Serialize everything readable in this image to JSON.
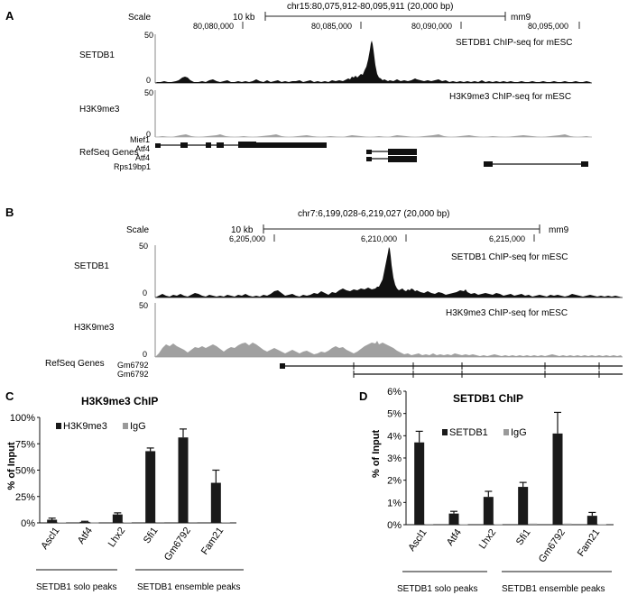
{
  "panels": {
    "A": {
      "label": "A",
      "scale_label": "Scale",
      "scale_bar": "10 kb",
      "coords": "chr15:80,075,912-80,095,911 (20,000 bp)",
      "assembly": "mm9",
      "ticks": [
        "80,080,000",
        "80,085,000",
        "80,090,000",
        "80,095,000"
      ],
      "setdb1": {
        "label": "SETDB1",
        "max": "50",
        "min": "0",
        "title": "SETDB1 ChIP-seq for mESC"
      },
      "h3k9": {
        "label": "H3K9me3",
        "max": "50",
        "min": "0",
        "title": "H3K9me3 ChIP-seq for mESC"
      },
      "refseq_label": "RefSeq Genes",
      "genes": [
        "Mief1",
        "Atf4",
        "Atf4",
        "Rps19bp1"
      ]
    },
    "B": {
      "label": "B",
      "scale_label": "Scale",
      "scale_bar": "10 kb",
      "coords": "chr7:6,199,028-6,219,027 (20,000 bp)",
      "assembly": "mm9",
      "ticks": [
        "6,205,000",
        "6,210,000",
        "6,215,000"
      ],
      "setdb1": {
        "label": "SETDB1",
        "max": "50",
        "min": "0",
        "title": "SETDB1 ChIP-seq for mESC"
      },
      "h3k9": {
        "label": "H3K9me3",
        "max": "50",
        "min": "0",
        "title": "H3K9me3 ChIP-seq for mESC"
      },
      "refseq_label": "RefSeq Genes",
      "genes": [
        "Gm6792",
        "Gm6792"
      ]
    },
    "C": {
      "label": "C",
      "group1": "SETDB1 solo peaks",
      "group2": "SETDB1 ensemble peaks"
    },
    "D": {
      "label": "D",
      "group1": "SETDB1 solo peaks",
      "group2": "SETDB1 ensemble peaks"
    }
  },
  "colors": {
    "primary": "#1a1a1a",
    "secondary": "#9a9a9a",
    "h3k9_fill": "#a0a0a0"
  },
  "chart_data": [
    {
      "type": "bar",
      "title": "H3K9me3 ChIP",
      "ylabel": "% of Input",
      "ylim": [
        0,
        100
      ],
      "yticks": [
        "0%",
        "25%",
        "50%",
        "75%",
        "100%"
      ],
      "categories": [
        "Ascl1",
        "Atf4",
        "Lhx2",
        "Sfi1",
        "Gm6792",
        "Fam21"
      ],
      "series": [
        {
          "name": "H3K9me3",
          "values": [
            3,
            1,
            8,
            68,
            81,
            38
          ],
          "errors": [
            1.5,
            0.5,
            1.5,
            3,
            8,
            12
          ]
        },
        {
          "name": "IgG",
          "values": [
            0.5,
            0.3,
            0.5,
            0.8,
            0.8,
            0.6
          ],
          "errors": [
            0,
            0,
            0,
            0,
            0,
            0
          ]
        }
      ],
      "legend": "top-left"
    },
    {
      "type": "bar",
      "title": "SETDB1 ChIP",
      "ylabel": "% of Input",
      "ylim": [
        0,
        6
      ],
      "yticks": [
        "0%",
        "1%",
        "2%",
        "3%",
        "4%",
        "5%",
        "6%"
      ],
      "categories": [
        "Ascl1",
        "Atf4",
        "Lhx2",
        "Sfi1",
        "Gm6792",
        "Fam21"
      ],
      "series": [
        {
          "name": "SETDB1",
          "values": [
            3.7,
            0.5,
            1.25,
            1.7,
            4.1,
            0.4
          ],
          "errors": [
            0.5,
            0.1,
            0.25,
            0.2,
            0.95,
            0.15
          ]
        },
        {
          "name": "IgG",
          "values": [
            0.03,
            0.02,
            0.02,
            0.05,
            0.05,
            0.02
          ],
          "errors": [
            0,
            0,
            0,
            0,
            0,
            0
          ]
        }
      ],
      "legend": "top-left"
    }
  ]
}
